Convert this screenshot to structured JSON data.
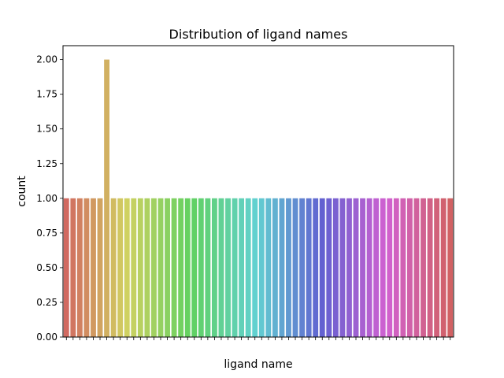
{
  "chart_data": {
    "type": "bar",
    "title": "Distribution of ligand names",
    "xlabel": "ligand name",
    "ylabel": "count",
    "ylim": [
      0,
      2.1
    ],
    "yticks": [
      "0.00",
      "0.25",
      "0.50",
      "0.75",
      "1.00",
      "1.25",
      "1.50",
      "1.75",
      "2.00"
    ],
    "ytick_values": [
      0,
      0.25,
      0.5,
      0.75,
      1.0,
      1.25,
      1.5,
      1.75,
      2.0
    ],
    "values": [
      1,
      1,
      1,
      1,
      1,
      1,
      2,
      1,
      1,
      1,
      1,
      1,
      1,
      1,
      1,
      1,
      1,
      1,
      1,
      1,
      1,
      1,
      1,
      1,
      1,
      1,
      1,
      1,
      1,
      1,
      1,
      1,
      1,
      1,
      1,
      1,
      1,
      1,
      1,
      1,
      1,
      1,
      1,
      1,
      1,
      1,
      1,
      1,
      1,
      1,
      1,
      1,
      1,
      1,
      1,
      1,
      1,
      1
    ],
    "grid": false,
    "legend": "none"
  }
}
